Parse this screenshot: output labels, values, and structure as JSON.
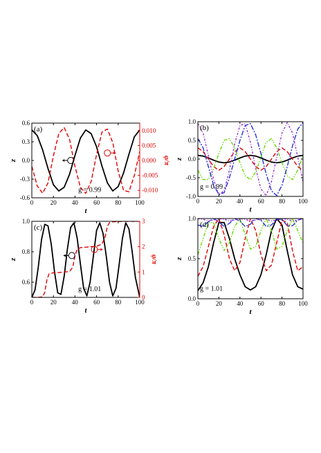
{
  "chart_data": [
    {
      "panel": "(a)",
      "type": "line",
      "annotation": "g = 0.99",
      "xlabel": "t",
      "ylabel": "z",
      "ylabel_right": "φ/π",
      "xlim": [
        0,
        100
      ],
      "ylim": [
        -0.6,
        0.6
      ],
      "ylim_right": [
        -0.0125,
        0.0125
      ],
      "xticks": [
        "0",
        "20",
        "40",
        "60",
        "80",
        "100"
      ],
      "yticks": [
        "-0.6",
        "-0.3",
        "0.0",
        "0.3",
        "0.6"
      ],
      "yticks_right": [
        "-0.010",
        "-0.005",
        "0.000",
        "0.005",
        "0.010"
      ],
      "series": [
        {
          "axis": "left",
          "color": "#000000",
          "style": "solid",
          "x": [
            0,
            5,
            10,
            15,
            20,
            25,
            30,
            35,
            40,
            45,
            50,
            55,
            60,
            65,
            70,
            75,
            80,
            85,
            90,
            95,
            100
          ],
          "y": [
            0.49,
            0.4,
            0.17,
            -0.13,
            -0.39,
            -0.49,
            -0.43,
            -0.22,
            0.08,
            0.36,
            0.49,
            0.43,
            0.22,
            -0.09,
            -0.36,
            -0.49,
            -0.42,
            -0.2,
            0.1,
            0.38,
            0.49
          ]
        },
        {
          "axis": "right",
          "color": "#e00000",
          "style": "dashed",
          "x": [
            0,
            5,
            10,
            15,
            20,
            25,
            30,
            35,
            40,
            45,
            50,
            55,
            60,
            65,
            70,
            75,
            80,
            85,
            90,
            95,
            100
          ],
          "y": [
            -0.002,
            -0.0085,
            -0.011,
            -0.0075,
            0.0015,
            0.009,
            0.011,
            0.007,
            -0.002,
            -0.009,
            -0.011,
            -0.007,
            0.002,
            0.0095,
            0.0105,
            0.006,
            -0.0035,
            -0.01,
            -0.0105,
            -0.005,
            0.003
          ]
        }
      ]
    },
    {
      "panel": "(b)",
      "type": "line",
      "annotation": "g = 0.99",
      "xlabel": "t",
      "ylabel": "z",
      "xlim": [
        0,
        100
      ],
      "ylim": [
        -1.0,
        1.0
      ],
      "xticks": [
        "0",
        "20",
        "40",
        "60",
        "80",
        "100"
      ],
      "yticks": [
        "-1.0",
        "-0.5",
        "0.0",
        "0.5",
        "1.0"
      ],
      "series": [
        {
          "color": "#000000",
          "style": "solid",
          "x": [
            0,
            5,
            10,
            15,
            20,
            25,
            30,
            35,
            40,
            45,
            50,
            55,
            60,
            65,
            70,
            75,
            80,
            85,
            90,
            95,
            100
          ],
          "y": [
            0.1,
            0.08,
            0.03,
            -0.03,
            -0.08,
            -0.1,
            -0.08,
            -0.03,
            0.03,
            0.08,
            0.1,
            0.08,
            0.03,
            -0.03,
            -0.08,
            -0.1,
            -0.08,
            -0.03,
            0.03,
            0.08,
            0.1
          ]
        },
        {
          "color": "#e00000",
          "style": "dashed",
          "x": [
            0,
            5,
            10,
            15,
            20,
            25,
            30,
            35,
            40,
            45,
            50,
            55,
            60,
            65,
            70,
            75,
            80,
            85,
            90,
            95,
            100
          ],
          "y": [
            0.3,
            0.2,
            0.0,
            -0.2,
            -0.3,
            -0.2,
            0.0,
            0.2,
            0.3,
            0.2,
            0.0,
            -0.2,
            -0.3,
            -0.2,
            0.0,
            0.2,
            0.3,
            0.2,
            0.0,
            -0.2,
            -0.3
          ]
        },
        {
          "color": "#66dd00",
          "style": "dashdotdot",
          "x": [
            0,
            5,
            10,
            15,
            20,
            25,
            30,
            35,
            40,
            45,
            50,
            55,
            60,
            65,
            70,
            75,
            80,
            85,
            90,
            95,
            100
          ],
          "y": [
            -0.3,
            -0.55,
            -0.55,
            -0.25,
            0.15,
            0.5,
            0.55,
            0.3,
            -0.1,
            -0.45,
            -0.55,
            -0.35,
            0.05,
            0.45,
            0.55,
            0.3,
            -0.1,
            -0.45,
            -0.55,
            -0.3,
            0.1
          ]
        },
        {
          "color": "#2233dd",
          "style": "dashdot",
          "x": [
            0,
            5,
            10,
            15,
            20,
            25,
            30,
            35,
            40,
            45,
            50,
            55,
            60,
            65,
            70,
            75,
            80,
            85,
            90,
            95,
            100
          ],
          "y": [
            0.55,
            0.3,
            -0.2,
            -0.7,
            -0.95,
            -0.9,
            -0.5,
            0.0,
            0.5,
            0.9,
            0.95,
            0.65,
            0.15,
            -0.4,
            -0.85,
            -0.98,
            -0.7,
            -0.2,
            0.35,
            0.8,
            0.98
          ]
        },
        {
          "color": "#9933cc",
          "style": "shortdashdot",
          "x": [
            0,
            5,
            10,
            15,
            20,
            25,
            30,
            35,
            40,
            45,
            50,
            55,
            60,
            65,
            70,
            75,
            80,
            85,
            90,
            95,
            100
          ],
          "y": [
            0.95,
            0.7,
            0.1,
            -0.55,
            -0.95,
            -0.85,
            -0.3,
            0.4,
            0.9,
            0.95,
            0.45,
            -0.25,
            -0.8,
            -0.98,
            -0.6,
            0.05,
            0.7,
            0.98,
            0.7,
            0.05,
            -0.6
          ]
        }
      ]
    },
    {
      "panel": "(c)",
      "type": "line",
      "annotation": "g = 1.01",
      "xlabel": "t",
      "ylabel": "z",
      "ylabel_right": "φ/π",
      "xlim": [
        0,
        100
      ],
      "ylim": [
        0.5,
        1.0
      ],
      "ylim_right": [
        0,
        3
      ],
      "xticks": [
        "0",
        "20",
        "40",
        "60",
        "80",
        "100"
      ],
      "yticks": [
        "0.6",
        "0.8",
        "1.0"
      ],
      "yticks_right": [
        "0",
        "1",
        "2",
        "3"
      ],
      "series": [
        {
          "axis": "left",
          "color": "#000000",
          "style": "solid",
          "x": [
            0,
            3,
            6,
            9,
            12,
            15,
            18,
            21,
            24,
            27,
            30,
            33,
            36,
            39,
            42,
            45,
            48,
            51,
            54,
            57,
            60,
            63,
            66,
            69,
            72,
            75,
            78,
            81,
            84,
            87,
            90,
            93,
            96,
            100
          ],
          "y": [
            0.5,
            0.55,
            0.7,
            0.88,
            0.98,
            0.97,
            0.85,
            0.67,
            0.53,
            0.52,
            0.64,
            0.82,
            0.96,
            0.99,
            0.89,
            0.72,
            0.56,
            0.51,
            0.6,
            0.77,
            0.94,
            0.99,
            0.92,
            0.77,
            0.6,
            0.51,
            0.56,
            0.72,
            0.89,
            0.99,
            0.95,
            0.8,
            0.63,
            0.5
          ]
        },
        {
          "axis": "right",
          "color": "#e00000",
          "style": "dashed",
          "x": [
            0,
            5,
            10,
            12,
            14,
            16,
            20,
            25,
            30,
            35,
            38,
            40,
            42,
            45,
            50,
            55,
            60,
            65,
            68,
            70,
            72,
            75,
            80,
            85,
            90,
            95,
            100
          ],
          "y": [
            0.0,
            0.0,
            0.02,
            0.2,
            0.7,
            0.93,
            0.97,
            0.98,
            1.0,
            1.02,
            1.2,
            1.65,
            1.9,
            1.96,
            1.98,
            2.0,
            2.02,
            2.1,
            2.4,
            2.8,
            2.95,
            2.98,
            2.99,
            3.0,
            3.0,
            3.0,
            3.0
          ]
        }
      ]
    },
    {
      "panel": "(d)",
      "type": "line",
      "annotation": "g = 1.01",
      "xlabel": "t",
      "ylabel": "z",
      "xlim": [
        0,
        100
      ],
      "ylim": [
        0.0,
        1.0
      ],
      "xticks": [
        "0",
        "20",
        "40",
        "60",
        "80",
        "100"
      ],
      "yticks": [
        "0.0",
        "0.5",
        "1.0"
      ],
      "series": [
        {
          "color": "#000000",
          "style": "solid",
          "x": [
            0,
            5,
            10,
            15,
            20,
            25,
            30,
            35,
            40,
            45,
            50,
            55,
            60,
            65,
            70,
            75,
            80,
            85,
            90,
            95,
            100
          ],
          "y": [
            0.1,
            0.2,
            0.4,
            0.7,
            0.95,
            0.95,
            0.75,
            0.5,
            0.3,
            0.15,
            0.11,
            0.15,
            0.3,
            0.55,
            0.85,
            1.0,
            0.92,
            0.6,
            0.3,
            0.15,
            0.12
          ]
        },
        {
          "color": "#e00000",
          "style": "dashed",
          "x": [
            0,
            5,
            10,
            15,
            20,
            25,
            30,
            35,
            40,
            45,
            50,
            55,
            60,
            65,
            70,
            75,
            80,
            85,
            90,
            95,
            100
          ],
          "y": [
            0.28,
            0.4,
            0.65,
            0.9,
            1.0,
            0.8,
            0.5,
            0.35,
            0.45,
            0.75,
            1.0,
            0.85,
            0.55,
            0.35,
            0.42,
            0.7,
            0.98,
            0.95,
            0.6,
            0.35,
            0.4
          ]
        },
        {
          "color": "#66dd00",
          "style": "dashdotdot",
          "x": [
            0,
            5,
            10,
            15,
            20,
            25,
            30,
            35,
            40,
            45,
            50,
            55,
            60,
            65,
            70,
            75,
            80,
            85,
            90,
            95,
            100
          ],
          "y": [
            0.55,
            0.75,
            0.95,
            0.95,
            0.75,
            0.6,
            0.7,
            0.9,
            1.0,
            0.8,
            0.62,
            0.65,
            0.85,
            1.0,
            0.85,
            0.62,
            0.65,
            0.85,
            1.0,
            0.85,
            0.7
          ]
        },
        {
          "color": "#2233dd",
          "style": "dashdot",
          "x": [
            0,
            5,
            10,
            15,
            20,
            25,
            30,
            35,
            40,
            45,
            50,
            55,
            60,
            65,
            70,
            75,
            80,
            85,
            90,
            95,
            100
          ],
          "y": [
            0.92,
            0.9,
            0.96,
            1.0,
            0.96,
            0.9,
            0.94,
            1.0,
            0.97,
            0.9,
            0.93,
            1.0,
            0.98,
            0.9,
            0.92,
            0.99,
            0.99,
            0.91,
            0.91,
            0.98,
            1.0
          ]
        },
        {
          "color": "#9933cc",
          "style": "shortdashdot",
          "x": [
            0,
            5,
            10,
            15,
            20,
            25,
            30,
            35,
            40,
            45,
            50,
            55,
            60,
            65,
            70,
            75,
            80,
            85,
            90,
            95,
            100
          ],
          "y": [
            1.0,
            0.99,
            0.97,
            0.98,
            1.0,
            0.99,
            0.97,
            0.98,
            1.0,
            0.99,
            0.97,
            0.98,
            1.0,
            0.99,
            0.97,
            0.98,
            1.0,
            0.99,
            0.97,
            0.98,
            1.0
          ]
        }
      ]
    }
  ],
  "colors": {
    "axis": "#000000",
    "right_axis": "#e00000"
  }
}
